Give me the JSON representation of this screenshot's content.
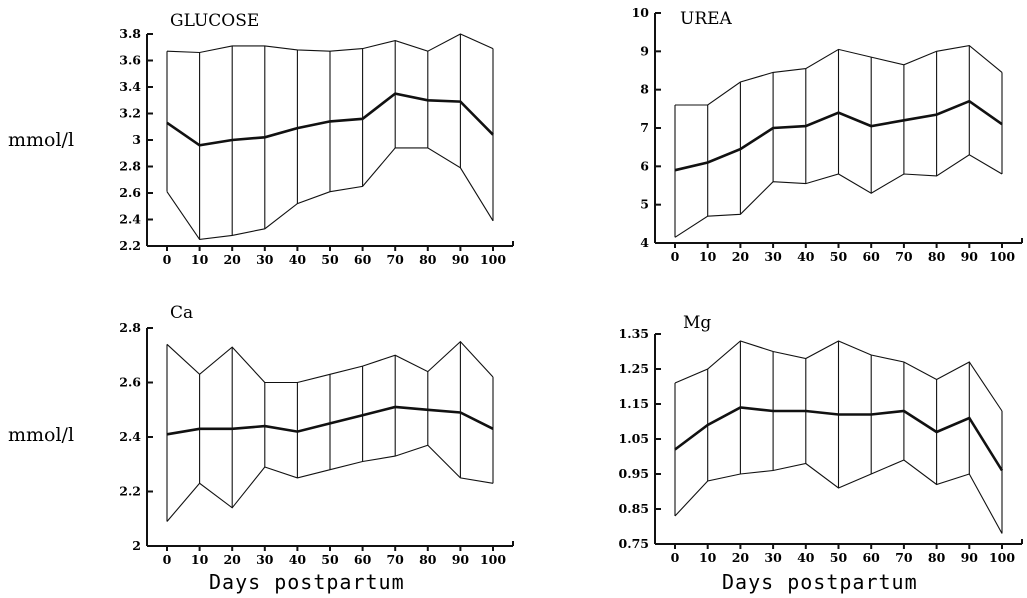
{
  "chart_data": [
    {
      "type": "line",
      "title": "GLUCOSE",
      "ylabel": "mmol/l",
      "xlabel": "",
      "x": [
        0,
        10,
        20,
        30,
        40,
        50,
        60,
        70,
        80,
        90,
        100
      ],
      "xticks": [
        "0",
        "10",
        "20",
        "30",
        "40",
        "50",
        "60",
        "70",
        "80",
        "90",
        "100"
      ],
      "ylim": [
        2.2,
        3.8
      ],
      "yticks": [
        2.2,
        2.4,
        2.6,
        2.8,
        3,
        3.2,
        3.4,
        3.6,
        3.8
      ],
      "ytick_labels": [
        "2.2",
        "2.4",
        "2.6",
        "2.8",
        "3",
        "3.2",
        "3.4",
        "3.6",
        "3.8"
      ],
      "series": [
        {
          "role": "upper",
          "values": [
            3.67,
            3.66,
            3.71,
            3.71,
            3.68,
            3.67,
            3.69,
            3.75,
            3.67,
            3.8,
            3.69
          ]
        },
        {
          "role": "mean",
          "values": [
            3.13,
            2.96,
            3.0,
            3.02,
            3.09,
            3.14,
            3.16,
            3.35,
            3.3,
            3.29,
            3.04
          ]
        },
        {
          "role": "lower",
          "values": [
            2.61,
            2.25,
            2.28,
            2.33,
            2.52,
            2.61,
            2.65,
            2.94,
            2.94,
            2.79,
            2.39
          ]
        }
      ]
    },
    {
      "type": "line",
      "title": "UREA",
      "ylabel": "",
      "xlabel": "",
      "x": [
        0,
        10,
        20,
        30,
        40,
        50,
        60,
        70,
        80,
        90,
        100
      ],
      "xticks": [
        "0",
        "10",
        "20",
        "30",
        "40",
        "50",
        "60",
        "70",
        "80",
        "90",
        "100"
      ],
      "ylim": [
        4,
        10
      ],
      "yticks": [
        4,
        5,
        6,
        7,
        8,
        9,
        10
      ],
      "ytick_labels": [
        "4",
        "5",
        "6",
        "7",
        "8",
        "9",
        "10"
      ],
      "series": [
        {
          "role": "upper",
          "values": [
            7.6,
            7.6,
            8.2,
            8.45,
            8.55,
            9.05,
            8.85,
            8.65,
            9.0,
            9.15,
            8.45
          ]
        },
        {
          "role": "mean",
          "values": [
            5.9,
            6.1,
            6.45,
            7.0,
            7.05,
            7.4,
            7.05,
            7.2,
            7.35,
            7.7,
            7.1
          ]
        },
        {
          "role": "lower",
          "values": [
            4.15,
            4.7,
            4.75,
            5.6,
            5.55,
            5.8,
            5.3,
            5.8,
            5.75,
            6.3,
            5.8
          ]
        }
      ]
    },
    {
      "type": "line",
      "title": "Ca",
      "ylabel": "mmol/l",
      "xlabel": "Days postpartum",
      "x": [
        0,
        10,
        20,
        30,
        40,
        50,
        60,
        70,
        80,
        90,
        100
      ],
      "xticks": [
        "0",
        "10",
        "20",
        "30",
        "40",
        "50",
        "60",
        "70",
        "80",
        "90",
        "100"
      ],
      "ylim": [
        2.0,
        2.8
      ],
      "yticks": [
        2.0,
        2.2,
        2.4,
        2.6,
        2.8
      ],
      "ytick_labels": [
        "2",
        "2.2",
        "2.4",
        "2.6",
        "2.8"
      ],
      "series": [
        {
          "role": "upper",
          "values": [
            2.74,
            2.63,
            2.73,
            2.6,
            2.6,
            2.63,
            2.66,
            2.7,
            2.64,
            2.75,
            2.62
          ]
        },
        {
          "role": "mean",
          "values": [
            2.41,
            2.43,
            2.43,
            2.44,
            2.42,
            2.45,
            2.48,
            2.51,
            2.5,
            2.49,
            2.43
          ]
        },
        {
          "role": "lower",
          "values": [
            2.09,
            2.23,
            2.14,
            2.29,
            2.25,
            2.28,
            2.31,
            2.33,
            2.37,
            2.25,
            2.23
          ]
        }
      ]
    },
    {
      "type": "line",
      "title": "Mg",
      "ylabel": "",
      "xlabel": "Days postpartum",
      "x": [
        0,
        10,
        20,
        30,
        40,
        50,
        60,
        70,
        80,
        90,
        100
      ],
      "xticks": [
        "0",
        "10",
        "20",
        "30",
        "40",
        "50",
        "60",
        "70",
        "80",
        "90",
        "100"
      ],
      "ylim": [
        0.75,
        1.35
      ],
      "yticks": [
        0.75,
        0.85,
        0.95,
        1.05,
        1.15,
        1.25,
        1.35
      ],
      "ytick_labels": [
        "0.75",
        "0.85",
        "0.95",
        "1.05",
        "1.15",
        "1.25",
        "1.35"
      ],
      "series": [
        {
          "role": "upper",
          "values": [
            1.21,
            1.25,
            1.33,
            1.3,
            1.28,
            1.33,
            1.29,
            1.27,
            1.22,
            1.27,
            1.13
          ]
        },
        {
          "role": "mean",
          "values": [
            1.02,
            1.09,
            1.14,
            1.13,
            1.13,
            1.12,
            1.12,
            1.13,
            1.07,
            1.11,
            0.96
          ]
        },
        {
          "role": "lower",
          "values": [
            0.83,
            0.93,
            0.95,
            0.96,
            0.98,
            0.91,
            0.95,
            0.99,
            0.92,
            0.95,
            0.78
          ]
        }
      ]
    }
  ]
}
